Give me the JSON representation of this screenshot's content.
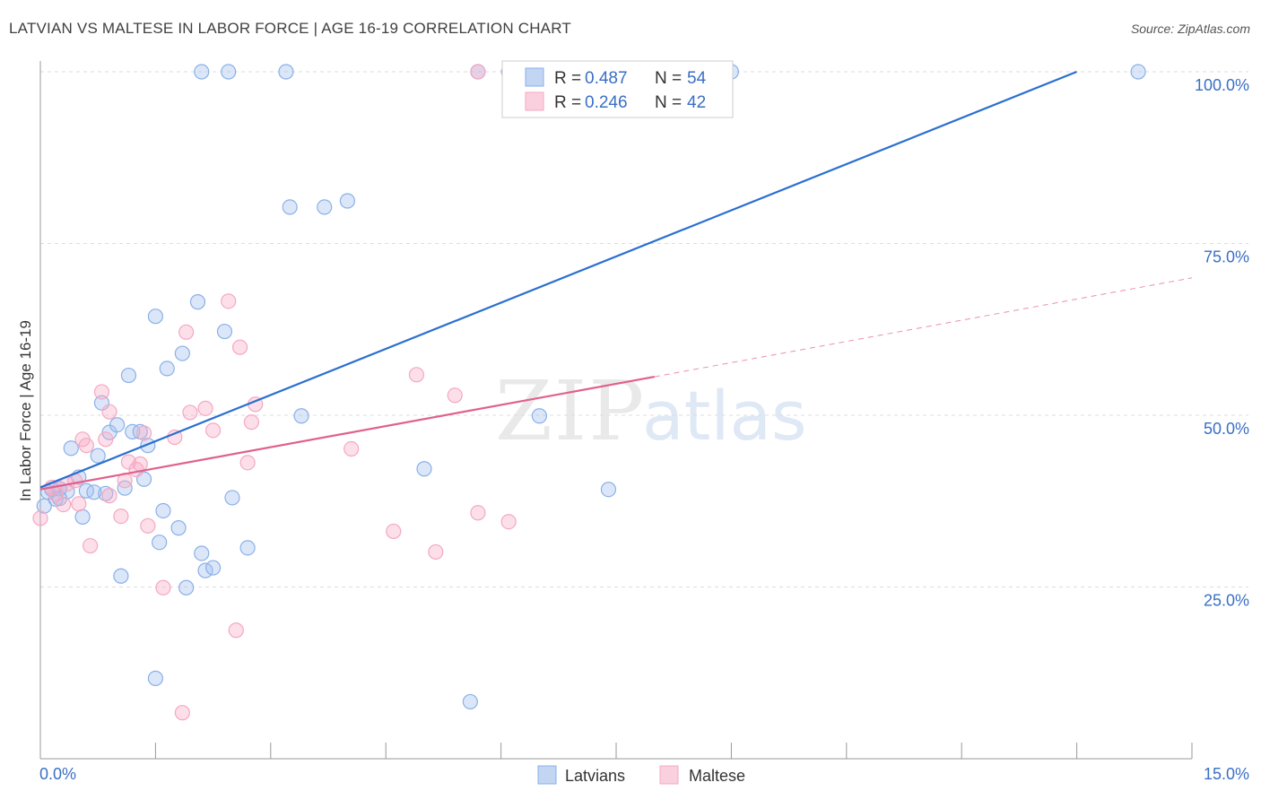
{
  "header": {
    "title": "LATVIAN VS MALTESE IN LABOR FORCE | AGE 16-19 CORRELATION CHART",
    "source": "Source: ZipAtlas.com"
  },
  "chart_data": {
    "type": "scatter",
    "title": "LATVIAN VS MALTESE IN LABOR FORCE | AGE 16-19 CORRELATION CHART",
    "xlabel": "",
    "ylabel": "In Labor Force | Age 16-19",
    "xlim": [
      0,
      15
    ],
    "ylim": [
      0,
      100
    ],
    "x_tick_labels": {
      "min": "0.0%",
      "max": "15.0%"
    },
    "y_ticks": [
      {
        "value": 25,
        "label": "25.0%"
      },
      {
        "value": 50,
        "label": "50.0%"
      },
      {
        "value": 75,
        "label": "75.0%"
      },
      {
        "value": 100,
        "label": "100.0%"
      }
    ],
    "grid": true,
    "watermark": {
      "zip": "ZIP",
      "atlas": "atlas"
    },
    "legend": {
      "position": "top-center",
      "entries": [
        {
          "r_label": "R =",
          "r_value": "0.487",
          "n_label": "N =",
          "n_value": "54"
        },
        {
          "r_label": "R =",
          "r_value": "0.246",
          "n_label": "N =",
          "n_value": "42"
        }
      ]
    },
    "series": [
      {
        "name": "Latvians",
        "color": "#8ab0e8",
        "line_color": "#2b6fd0",
        "trend": {
          "x0": 0.0,
          "y0": 39.5,
          "x1": 13.5,
          "y1": 100.0,
          "dashed_to": null
        },
        "points": [
          [
            0.05,
            36.8
          ],
          [
            0.1,
            38.8
          ],
          [
            0.15,
            39.2
          ],
          [
            0.2,
            37.8
          ],
          [
            0.25,
            39.3
          ],
          [
            0.35,
            38.9
          ],
          [
            0.4,
            45.2
          ],
          [
            0.5,
            41.0
          ],
          [
            0.55,
            35.2
          ],
          [
            0.6,
            39.0
          ],
          [
            0.7,
            38.8
          ],
          [
            0.75,
            44.1
          ],
          [
            0.8,
            51.8
          ],
          [
            0.85,
            38.6
          ],
          [
            0.9,
            47.5
          ],
          [
            1.0,
            48.6
          ],
          [
            1.05,
            26.6
          ],
          [
            1.1,
            39.4
          ],
          [
            1.15,
            55.8
          ],
          [
            1.2,
            47.6
          ],
          [
            1.3,
            47.6
          ],
          [
            1.35,
            40.7
          ],
          [
            1.4,
            45.6
          ],
          [
            1.5,
            64.4
          ],
          [
            1.55,
            31.5
          ],
          [
            1.6,
            36.1
          ],
          [
            1.65,
            56.8
          ],
          [
            1.8,
            33.6
          ],
          [
            1.85,
            59.0
          ],
          [
            1.9,
            24.9
          ],
          [
            2.05,
            66.5
          ],
          [
            2.1,
            29.9
          ],
          [
            2.15,
            27.4
          ],
          [
            2.25,
            27.8
          ],
          [
            2.4,
            62.2
          ],
          [
            2.5,
            38.0
          ],
          [
            2.7,
            30.7
          ],
          [
            3.25,
            80.3
          ],
          [
            3.4,
            49.9
          ],
          [
            3.7,
            80.3
          ],
          [
            4.0,
            81.2
          ],
          [
            5.0,
            42.2
          ],
          [
            6.5,
            49.9
          ],
          [
            7.4,
            39.2
          ],
          [
            1.5,
            11.7
          ],
          [
            5.6,
            8.3
          ],
          [
            2.1,
            100.0
          ],
          [
            2.45,
            100.0
          ],
          [
            3.2,
            100.0
          ],
          [
            5.7,
            100.0
          ],
          [
            6.1,
            100.0
          ],
          [
            9.0,
            100.0
          ],
          [
            14.3,
            100.0
          ],
          [
            0.25,
            37.9
          ]
        ]
      },
      {
        "name": "Maltese",
        "color": "#f4a8c2",
        "line_color": "#e0608e",
        "trend": {
          "x0": 0.0,
          "y0": 39.2,
          "x1": 8.0,
          "y1": 55.6,
          "dashed_to": {
            "x": 15.0,
            "y": 70.0
          }
        },
        "points": [
          [
            0.0,
            35.0
          ],
          [
            0.2,
            38.5
          ],
          [
            0.3,
            37.0
          ],
          [
            0.35,
            40.0
          ],
          [
            0.45,
            40.5
          ],
          [
            0.55,
            46.5
          ],
          [
            0.6,
            45.6
          ],
          [
            0.65,
            31.0
          ],
          [
            0.85,
            46.5
          ],
          [
            0.9,
            50.5
          ],
          [
            1.05,
            35.3
          ],
          [
            1.1,
            40.5
          ],
          [
            1.15,
            43.2
          ],
          [
            1.25,
            42.1
          ],
          [
            1.35,
            47.4
          ],
          [
            1.4,
            33.9
          ],
          [
            1.6,
            24.9
          ],
          [
            1.75,
            46.8
          ],
          [
            1.9,
            62.1
          ],
          [
            1.95,
            50.4
          ],
          [
            2.15,
            51.0
          ],
          [
            2.25,
            47.8
          ],
          [
            2.45,
            66.6
          ],
          [
            2.55,
            18.7
          ],
          [
            2.6,
            59.9
          ],
          [
            2.7,
            43.1
          ],
          [
            2.75,
            49.0
          ],
          [
            2.8,
            51.6
          ],
          [
            1.85,
            6.7
          ],
          [
            4.05,
            45.1
          ],
          [
            4.6,
            33.1
          ],
          [
            4.9,
            55.9
          ],
          [
            5.15,
            30.1
          ],
          [
            5.4,
            52.9
          ],
          [
            5.7,
            35.8
          ],
          [
            6.1,
            34.5
          ],
          [
            5.7,
            100.0
          ],
          [
            0.8,
            53.4
          ],
          [
            1.3,
            42.9
          ],
          [
            0.5,
            37.1
          ],
          [
            0.9,
            38.3
          ],
          [
            0.15,
            39.5
          ]
        ]
      }
    ]
  }
}
